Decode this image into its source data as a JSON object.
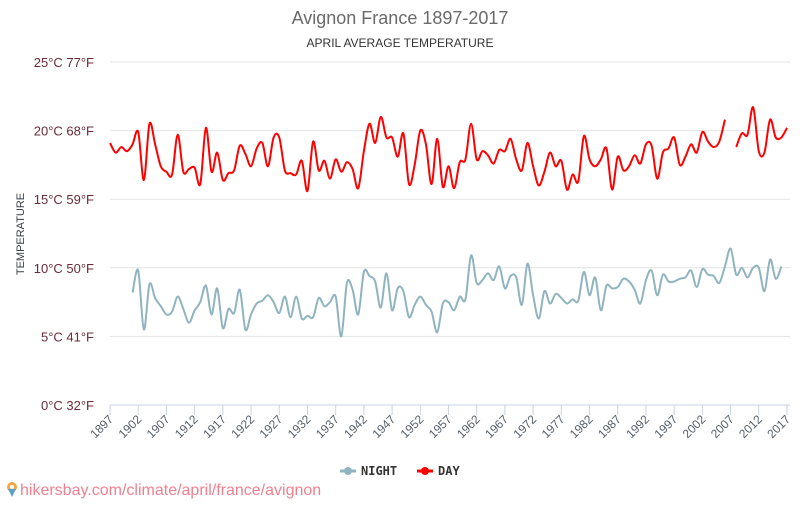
{
  "chart_data": {
    "type": "line",
    "title": "Avignon France 1897-2017",
    "subtitle": "APRIL AVERAGE TEMPERATURE",
    "ylabel": "TEMPERATURE",
    "xlabel": "",
    "ylim": [
      0,
      25
    ],
    "xlim": [
      1897,
      2017
    ],
    "y_ticks": [
      {
        "value": 0,
        "label": "0°C 32°F"
      },
      {
        "value": 5,
        "label": "5°C 41°F"
      },
      {
        "value": 10,
        "label": "10°C 50°F"
      },
      {
        "value": 15,
        "label": "15°C 59°F"
      },
      {
        "value": 20,
        "label": "20°C 68°F"
      },
      {
        "value": 25,
        "label": "25°C 77°F"
      }
    ],
    "x_ticks": [
      "1897",
      "1902",
      "1907",
      "1912",
      "1917",
      "1922",
      "1927",
      "1932",
      "1937",
      "1942",
      "1947",
      "1952",
      "1957",
      "1962",
      "1967",
      "1972",
      "1977",
      "1982",
      "1987",
      "1992",
      "1997",
      "2002",
      "2007",
      "2012",
      "2017"
    ],
    "grid": true,
    "legend_position": "bottom",
    "x_start": 1897,
    "series": [
      {
        "name": "NIGHT",
        "color": "#90b4bf",
        "values": [
          null,
          null,
          null,
          null,
          8.2,
          9.8,
          5.5,
          8.8,
          7.8,
          7.2,
          6.6,
          6.8,
          7.9,
          7.0,
          6.0,
          6.9,
          7.5,
          8.7,
          6.6,
          8.5,
          5.6,
          7.0,
          6.7,
          8.4,
          5.5,
          6.6,
          7.4,
          7.6,
          8.0,
          7.5,
          6.7,
          7.9,
          6.4,
          7.9,
          6.3,
          6.5,
          6.4,
          7.8,
          7.2,
          7.5,
          7.9,
          5.0,
          8.9,
          8.4,
          6.6,
          9.7,
          9.4,
          9.0,
          7.1,
          9.6,
          6.9,
          8.5,
          8.3,
          6.4,
          7.3,
          7.9,
          7.3,
          6.8,
          5.3,
          7.4,
          7.5,
          6.9,
          7.9,
          7.7,
          10.9,
          8.9,
          9.1,
          9.6,
          9.1,
          10.1,
          8.5,
          9.4,
          9.3,
          7.3,
          10.3,
          8.0,
          6.3,
          8.3,
          7.4,
          8.1,
          7.8,
          7.4,
          7.7,
          7.6,
          9.7,
          8.0,
          9.3,
          6.9,
          8.7,
          8.5,
          8.6,
          9.2,
          9.0,
          8.4,
          7.4,
          9.1,
          9.8,
          8.0,
          9.5,
          9.0,
          9.0,
          9.2,
          9.3,
          9.8,
          8.6,
          9.9,
          9.5,
          9.4,
          8.9,
          10.1,
          11.4,
          9.5,
          10.0,
          9.3,
          10.0,
          10.0,
          8.3,
          10.6,
          9.2,
          10.1,
          null
        ]
      },
      {
        "name": "DAY",
        "color": "#ff0000",
        "values": [
          19.1,
          18.4,
          18.8,
          18.5,
          19.0,
          19.9,
          16.4,
          20.5,
          19.0,
          17.4,
          17.0,
          16.8,
          19.7,
          17.0,
          17.2,
          17.3,
          16.1,
          20.2,
          17.0,
          18.4,
          16.4,
          16.9,
          17.1,
          18.9,
          18.3,
          17.4,
          18.7,
          19.1,
          17.4,
          19.5,
          19.5,
          17.1,
          16.9,
          16.8,
          17.8,
          15.6,
          19.2,
          17.1,
          17.8,
          16.5,
          17.9,
          17.0,
          17.7,
          17.2,
          15.8,
          18.5,
          20.5,
          19.1,
          21.0,
          19.5,
          19.5,
          18.1,
          19.8,
          16.1,
          17.5,
          20.0,
          19.0,
          16.1,
          19.4,
          15.9,
          17.4,
          15.8,
          17.7,
          17.9,
          20.5,
          17.9,
          18.5,
          18.2,
          17.6,
          18.6,
          18.5,
          19.4,
          17.9,
          17.1,
          19.1,
          17.4,
          16.0,
          17.0,
          18.4,
          17.4,
          17.8,
          15.7,
          16.8,
          16.3,
          19.6,
          17.9,
          17.4,
          17.9,
          18.7,
          15.7,
          18.1,
          17.1,
          17.4,
          18.2,
          17.6,
          19.0,
          18.9,
          16.5,
          18.4,
          18.7,
          19.5,
          17.5,
          18.1,
          19.0,
          18.4,
          19.9,
          19.2,
          18.8,
          19.2,
          20.8,
          null,
          18.8,
          19.8,
          19.7,
          21.7,
          18.5,
          18.4,
          20.8,
          19.5,
          19.5,
          20.2
        ]
      }
    ]
  },
  "watermark": "hikersbay.com/climate/april/france/avignon",
  "colors": {
    "axis_label": "#6b2a3a",
    "grid": "#e3e3e3",
    "watermark": "#f08090"
  }
}
